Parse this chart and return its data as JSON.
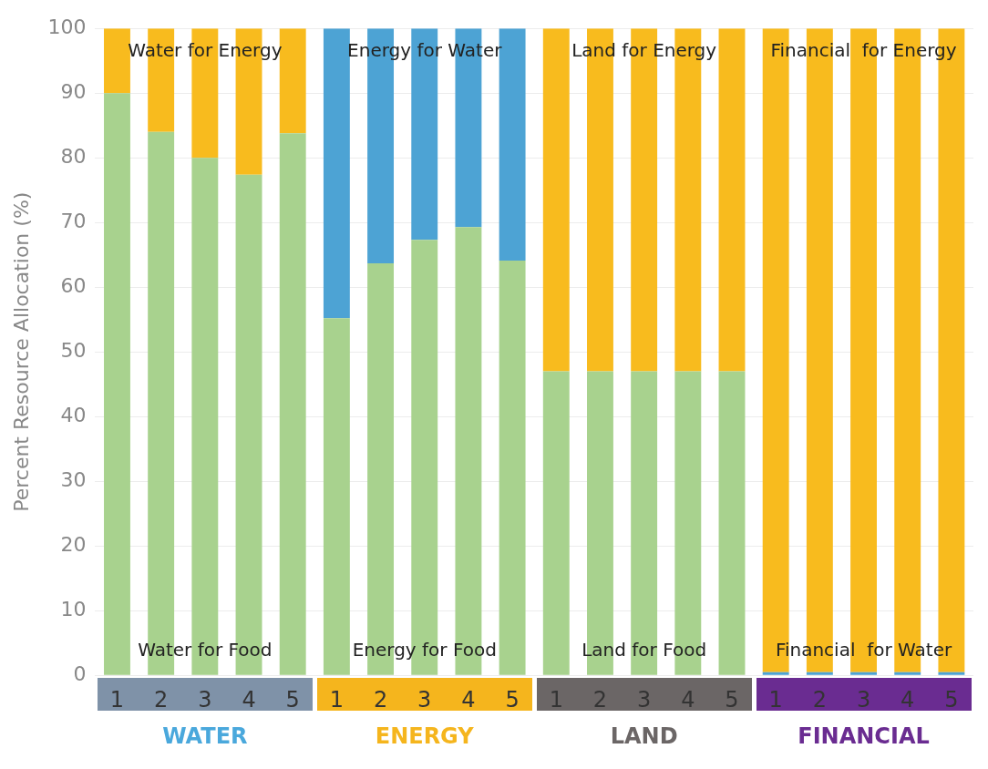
{
  "chart_data": {
    "type": "bar",
    "stacked": true,
    "ylabel": "Percent Resource Allocation (%)",
    "categories": [
      "1",
      "2",
      "3",
      "4",
      "5",
      "1",
      "2",
      "3",
      "4",
      "5",
      "1",
      "2",
      "3",
      "4",
      "5",
      "1",
      "2",
      "3",
      "4",
      "5"
    ],
    "series": [
      {
        "color": "#a8d28e",
        "values": [
          90,
          84,
          80,
          77.4,
          83.8,
          55.2,
          63.7,
          67.3,
          69.3,
          64.1,
          47,
          47,
          47,
          47,
          47,
          0,
          0,
          0,
          0,
          0
        ]
      },
      {
        "color": "#4da3d4",
        "values": [
          0,
          0,
          0,
          0,
          0,
          44.8,
          36.3,
          32.7,
          30.7,
          35.9,
          0,
          0,
          0,
          0,
          0,
          0.5,
          0.5,
          0.5,
          0.5,
          0.5
        ]
      },
      {
        "color": "#f8bb1e",
        "values": [
          10,
          16,
          20,
          22.6,
          16.2,
          0,
          0,
          0,
          0,
          0,
          53,
          53,
          53,
          53,
          53,
          99.5,
          99.5,
          99.5,
          99.5,
          99.5
        ]
      }
    ],
    "ylim": [
      0,
      100
    ],
    "yticks": [
      0,
      10,
      20,
      30,
      40,
      50,
      60,
      70,
      80,
      90,
      100
    ],
    "grid": "y",
    "legend": false,
    "annotations": [
      "Water for Energy",
      "Water for Food",
      "Energy for Water",
      "Energy for Food",
      "Land for Energy",
      "Land for Food",
      "Financial  for Energy",
      "Financial  for Water",
      "WATER",
      "ENERGY",
      "LAND",
      "FINANCIAL"
    ]
  }
}
